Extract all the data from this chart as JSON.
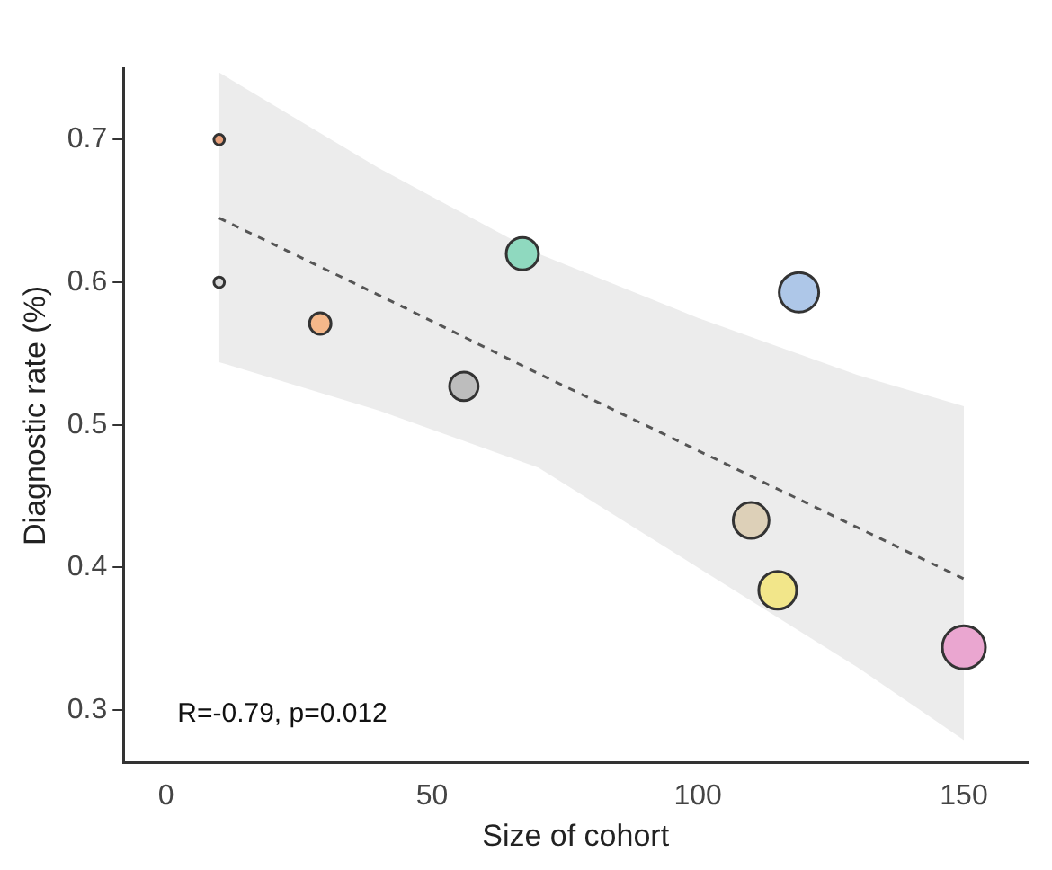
{
  "chart_data": {
    "type": "bubble",
    "xlabel": "Size of cohort",
    "ylabel": "Diagnostic rate (%)",
    "x": [
      10,
      10,
      29,
      56,
      67,
      119,
      110,
      115,
      150
    ],
    "values": [
      0.7,
      0.6,
      0.571,
      0.527,
      0.62,
      0.593,
      0.433,
      0.384,
      0.344
    ],
    "sizes": [
      0.06,
      0.06,
      0.25,
      0.44,
      0.56,
      0.84,
      0.69,
      0.77,
      1
    ],
    "colors": [
      "#e8a07a",
      "#d9d9d9",
      "#f5b88a",
      "#bdbdbd",
      "#8fd9bf",
      "#aec7e8",
      "#ddd0b8",
      "#f2e68a",
      "#eaa6d0"
    ],
    "series": [
      {
        "type": "line",
        "x": [
          10,
          40,
          70,
          100,
          130,
          150
        ],
        "values": [
          0.645,
          0.591,
          0.536,
          0.482,
          0.428,
          0.392
        ],
        "lower": [
          0.544,
          0.51,
          0.47,
          0.4,
          0.33,
          0.279
        ],
        "upper": [
          0.747,
          0.68,
          0.62,
          0.575,
          0.535,
          0.513
        ],
        "color": "#555555",
        "line_style": "dashed",
        "marker": "none"
      }
    ],
    "annotations": [
      "R=-0.79, p=0.012"
    ],
    "xlim": [
      -8,
      162
    ],
    "xticks": [
      0,
      50,
      100,
      150
    ],
    "ylim": [
      0.263,
      0.75
    ],
    "yticks": [
      0.3,
      0.4,
      0.5,
      0.6,
      0.7
    ],
    "grid": false,
    "legend": false,
    "marker": "circle"
  }
}
